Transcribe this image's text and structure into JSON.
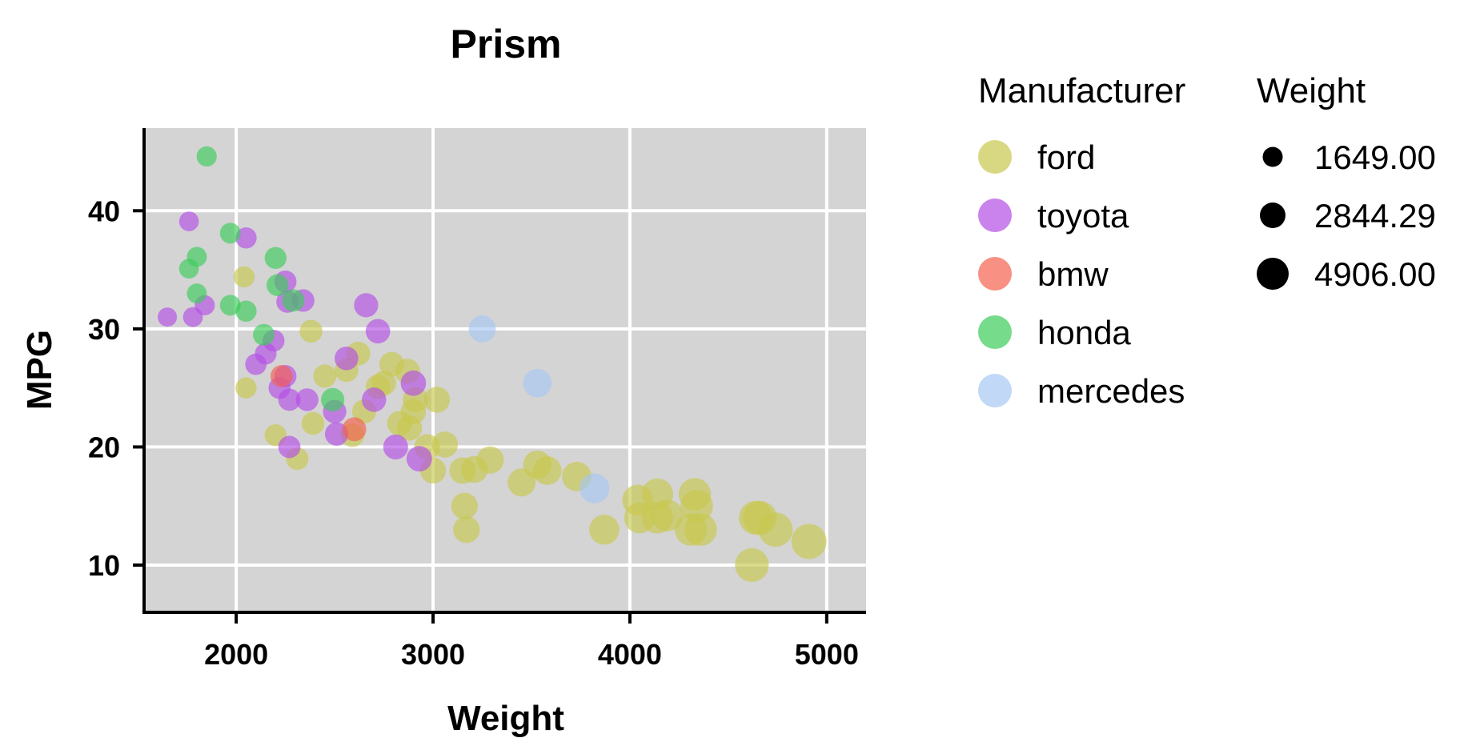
{
  "chart_data": {
    "type": "scatter",
    "title": "Prism",
    "xlabel": "Weight",
    "ylabel": "MPG",
    "xlim": [
      1540,
      5200
    ],
    "ylim": [
      6,
      47
    ],
    "xticks": [
      2000,
      3000,
      4000,
      5000
    ],
    "yticks": [
      10,
      20,
      30,
      40
    ],
    "grid": true,
    "background": "#d4d4d4",
    "color_legend": {
      "title": "Manufacturer",
      "entries": [
        {
          "name": "ford",
          "color": "#c8c84e"
        },
        {
          "name": "toyota",
          "color": "#b44ee6"
        },
        {
          "name": "bmw",
          "color": "#f5614e"
        },
        {
          "name": "honda",
          "color": "#3ccc5a"
        },
        {
          "name": "mercedes",
          "color": "#a6c8f2"
        }
      ]
    },
    "size_legend": {
      "title": "Weight",
      "entries": [
        "1649.00",
        "2844.29",
        "4906.00"
      ],
      "values": [
        1649,
        2844.29,
        4906
      ]
    },
    "series": [
      {
        "name": "ford",
        "points": [
          [
            2040,
            34.4
          ],
          [
            2380,
            29.8
          ],
          [
            2050,
            25
          ],
          [
            2200,
            21
          ],
          [
            2310,
            19
          ],
          [
            2390,
            22
          ],
          [
            2450,
            26
          ],
          [
            2560,
            26.5
          ],
          [
            2590,
            21
          ],
          [
            2620,
            27.9
          ],
          [
            2650,
            23
          ],
          [
            2720,
            25.1
          ],
          [
            2750,
            25.4
          ],
          [
            2790,
            27
          ],
          [
            2830,
            22
          ],
          [
            2870,
            26.4
          ],
          [
            2880,
            21.6
          ],
          [
            2900,
            23
          ],
          [
            2910,
            24
          ],
          [
            2970,
            20
          ],
          [
            3020,
            24
          ],
          [
            3000,
            18
          ],
          [
            3060,
            20.2
          ],
          [
            3150,
            18
          ],
          [
            3160,
            15
          ],
          [
            3170,
            13
          ],
          [
            3210,
            18.1
          ],
          [
            3290,
            18.9
          ],
          [
            3450,
            17
          ],
          [
            3530,
            18.5
          ],
          [
            3580,
            18
          ],
          [
            3730,
            17.5
          ],
          [
            3870,
            13
          ],
          [
            4040,
            15.5
          ],
          [
            4050,
            14
          ],
          [
            4140,
            16
          ],
          [
            4140,
            14
          ],
          [
            4190,
            14.2
          ],
          [
            4310,
            13
          ],
          [
            4330,
            16
          ],
          [
            4340,
            15
          ],
          [
            4360,
            13
          ],
          [
            4620,
            10
          ],
          [
            4640,
            14
          ],
          [
            4660,
            14
          ],
          [
            4740,
            13
          ],
          [
            4910,
            12
          ]
        ]
      },
      {
        "name": "toyota",
        "points": [
          [
            1650,
            31
          ],
          [
            1760,
            39.1
          ],
          [
            1780,
            31
          ],
          [
            1840,
            32
          ],
          [
            2050,
            37.7
          ],
          [
            2100,
            27
          ],
          [
            2150,
            27.9
          ],
          [
            2190,
            29
          ],
          [
            2220,
            25
          ],
          [
            2250,
            26
          ],
          [
            2250,
            34
          ],
          [
            2260,
            32.3
          ],
          [
            2270,
            24
          ],
          [
            2270,
            20
          ],
          [
            2340,
            32.4
          ],
          [
            2360,
            24
          ],
          [
            2500,
            23
          ],
          [
            2510,
            21.1
          ],
          [
            2560,
            27.5
          ],
          [
            2660,
            32
          ],
          [
            2700,
            24
          ],
          [
            2720,
            29.8
          ],
          [
            2810,
            20
          ],
          [
            2900,
            25.4
          ],
          [
            2930,
            19
          ]
        ]
      },
      {
        "name": "bmw",
        "points": [
          [
            2230,
            26
          ],
          [
            2600,
            21.5
          ]
        ]
      },
      {
        "name": "honda",
        "points": [
          [
            1850,
            44.6
          ],
          [
            1760,
            35.1
          ],
          [
            1800,
            36.1
          ],
          [
            1800,
            33
          ],
          [
            1970,
            32
          ],
          [
            1970,
            38.1
          ],
          [
            2050,
            31.5
          ],
          [
            2140,
            29.5
          ],
          [
            2200,
            36
          ],
          [
            2210,
            33.7
          ],
          [
            2290,
            32.4
          ],
          [
            2490,
            24
          ]
        ]
      },
      {
        "name": "mercedes",
        "points": [
          [
            3250,
            30
          ],
          [
            3530,
            25.4
          ],
          [
            3820,
            16.5
          ]
        ]
      }
    ]
  }
}
